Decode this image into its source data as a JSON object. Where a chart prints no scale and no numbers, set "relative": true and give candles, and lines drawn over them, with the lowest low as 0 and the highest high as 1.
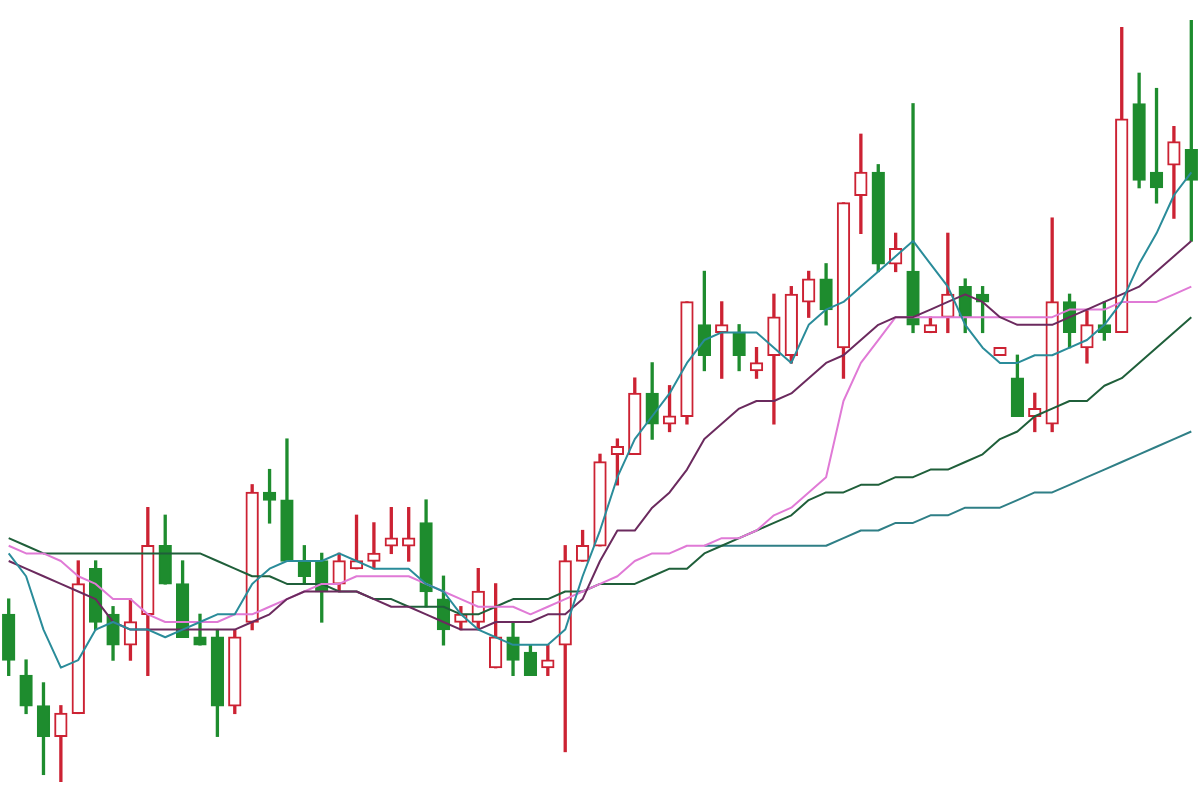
{
  "chart_data": {
    "type": "candlestick",
    "relative": true,
    "legend": false,
    "categories": [
      null,
      null,
      null,
      null,
      null,
      null,
      null,
      null,
      null,
      null,
      null,
      null,
      null,
      null,
      null,
      null,
      null,
      null,
      null,
      null,
      null,
      null,
      null,
      null,
      null,
      null,
      null,
      null,
      null,
      null,
      null,
      null,
      null,
      null,
      null,
      null,
      null,
      null,
      null,
      null,
      null,
      null,
      null,
      null,
      null,
      null,
      null,
      null,
      null,
      null,
      null,
      null,
      null,
      null,
      null,
      null,
      null,
      null,
      null,
      null,
      null,
      null,
      null,
      null,
      null,
      null,
      null,
      null,
      null
    ],
    "ohlc": [
      [
        0.22,
        0.24,
        0.14,
        0.16
      ],
      [
        0.14,
        0.16,
        0.09,
        0.1
      ],
      [
        0.1,
        0.13,
        0.01,
        0.06
      ],
      [
        0.06,
        0.1,
        0,
        0.09
      ],
      [
        0.09,
        0.29,
        0.09,
        0.26
      ],
      [
        0.28,
        0.29,
        0.2,
        0.21
      ],
      [
        0.22,
        0.23,
        0.16,
        0.18
      ],
      [
        0.18,
        0.24,
        0.16,
        0.21
      ],
      [
        0.22,
        0.36,
        0.14,
        0.31
      ],
      [
        0.31,
        0.35,
        0.26,
        0.26
      ],
      [
        0.26,
        0.29,
        0.19,
        0.19
      ],
      [
        0.19,
        0.22,
        0.18,
        0.18
      ],
      [
        0.19,
        0.2,
        0.06,
        0.1
      ],
      [
        0.1,
        0.2,
        0.09,
        0.19
      ],
      [
        0.21,
        0.39,
        0.2,
        0.38
      ],
      [
        0.38,
        0.41,
        0.34,
        0.37
      ],
      [
        0.37,
        0.45,
        0.29,
        0.29
      ],
      [
        0.29,
        0.31,
        0.26,
        0.27
      ],
      [
        0.29,
        0.3,
        0.21,
        0.25
      ],
      [
        0.26,
        0.3,
        0.25,
        0.29
      ],
      [
        0.28,
        0.35,
        0.28,
        0.29
      ],
      [
        0.29,
        0.34,
        0.28,
        0.3
      ],
      [
        0.31,
        0.36,
        0.3,
        0.32
      ],
      [
        0.31,
        0.36,
        0.29,
        0.32
      ],
      [
        0.34,
        0.37,
        0.23,
        0.25
      ],
      [
        0.24,
        0.27,
        0.18,
        0.2
      ],
      [
        0.21,
        0.23,
        0.2,
        0.22
      ],
      [
        0.21,
        0.28,
        0.2,
        0.25
      ],
      [
        0.15,
        0.26,
        0.15,
        0.19
      ],
      [
        0.19,
        0.21,
        0.14,
        0.16
      ],
      [
        0.17,
        0.18,
        0.14,
        0.14
      ],
      [
        0.15,
        0.18,
        0.14,
        0.16
      ],
      [
        0.18,
        0.31,
        0.04,
        0.29
      ],
      [
        0.29,
        0.33,
        0.29,
        0.31
      ],
      [
        0.31,
        0.43,
        0.31,
        0.42
      ],
      [
        0.43,
        0.45,
        0.39,
        0.44
      ],
      [
        0.43,
        0.53,
        0.43,
        0.51
      ],
      [
        0.51,
        0.55,
        0.45,
        0.47
      ],
      [
        0.47,
        0.52,
        0.46,
        0.48
      ],
      [
        0.48,
        0.63,
        0.47,
        0.63
      ],
      [
        0.6,
        0.67,
        0.54,
        0.56
      ],
      [
        0.59,
        0.63,
        0.53,
        0.6
      ],
      [
        0.59,
        0.6,
        0.54,
        0.56
      ],
      [
        0.54,
        0.57,
        0.53,
        0.55
      ],
      [
        0.56,
        0.64,
        0.47,
        0.61
      ],
      [
        0.56,
        0.65,
        0.55,
        0.64
      ],
      [
        0.63,
        0.67,
        0.61,
        0.66
      ],
      [
        0.66,
        0.68,
        0.6,
        0.62
      ],
      [
        0.57,
        0.76,
        0.53,
        0.76
      ],
      [
        0.77,
        0.85,
        0.72,
        0.8
      ],
      [
        0.8,
        0.81,
        0.67,
        0.68
      ],
      [
        0.68,
        0.72,
        0.67,
        0.7
      ],
      [
        0.67,
        0.89,
        0.59,
        0.6
      ],
      [
        0.59,
        0.61,
        0.59,
        0.6
      ],
      [
        0.61,
        0.72,
        0.59,
        0.64
      ],
      [
        0.65,
        0.66,
        0.59,
        0.61
      ],
      [
        0.64,
        0.65,
        0.59,
        0.63
      ],
      [
        0.56,
        0.57,
        0.56,
        0.57
      ],
      [
        0.53,
        0.56,
        0.48,
        0.48
      ],
      [
        0.48,
        0.51,
        0.46,
        0.49
      ],
      [
        0.47,
        0.74,
        0.46,
        0.63
      ],
      [
        0.63,
        0.64,
        0.57,
        0.59
      ],
      [
        0.57,
        0.62,
        0.55,
        0.6
      ],
      [
        0.6,
        0.63,
        0.58,
        0.59
      ],
      [
        0.59,
        0.99,
        0.59,
        0.87
      ],
      [
        0.89,
        0.93,
        0.78,
        0.79
      ],
      [
        0.8,
        0.91,
        0.76,
        0.78
      ],
      [
        0.81,
        0.86,
        0.74,
        0.84
      ],
      [
        0.83,
        1,
        0.71,
        0.79
      ]
    ],
    "colors": [
      "#1e8c2e",
      "#1e8c2e",
      "#1e8c2e",
      "#cc2233",
      "#cc2233",
      "#1e8c2e",
      "#1e8c2e",
      "#cc2233",
      "#cc2233",
      "#1e8c2e",
      "#1e8c2e",
      "#1e8c2e",
      "#1e8c2e",
      "#cc2233",
      "#cc2233",
      "#1e8c2e",
      "#1e8c2e",
      "#1e8c2e",
      "#1e8c2e",
      "#cc2233",
      "#cc2233",
      "#cc2233",
      "#cc2233",
      "#cc2233",
      "#1e8c2e",
      "#1e8c2e",
      "#cc2233",
      "#cc2233",
      "#cc2233",
      "#1e8c2e",
      "#1e8c2e",
      "#cc2233",
      "#cc2233",
      "#cc2233",
      "#cc2233",
      "#cc2233",
      "#cc2233",
      "#1e8c2e",
      "#cc2233",
      "#cc2233",
      "#1e8c2e",
      "#cc2233",
      "#1e8c2e",
      "#cc2233",
      "#cc2233",
      "#cc2233",
      "#cc2233",
      "#1e8c2e",
      "#cc2233",
      "#cc2233",
      "#1e8c2e",
      "#cc2233",
      "#1e8c2e",
      "#cc2233",
      "#cc2233",
      "#1e8c2e",
      "#1e8c2e",
      "#cc2233",
      "#1e8c2e",
      "#cc2233",
      "#cc2233",
      "#1e8c2e",
      "#cc2233",
      "#1e8c2e",
      "#cc2233",
      "#1e8c2e",
      "#1e8c2e",
      "#cc2233",
      "#1e8c2e"
    ],
    "series": [
      {
        "type": "line",
        "color": "#2a8c9a",
        "values": [
          0.3,
          0.27,
          0.2,
          0.15,
          0.16,
          0.2,
          0.21,
          0.2,
          0.2,
          0.19,
          0.2,
          0.21,
          0.22,
          0.22,
          0.26,
          0.28,
          0.29,
          0.29,
          0.29,
          0.3,
          0.29,
          0.28,
          0.28,
          0.28,
          0.26,
          0.25,
          0.22,
          0.2,
          0.19,
          0.18,
          0.18,
          0.18,
          0.2,
          0.27,
          0.33,
          0.4,
          0.45,
          0.48,
          0.51,
          0.55,
          0.58,
          0.59,
          0.59,
          0.59,
          0.57,
          0.55,
          0.6,
          0.62,
          0.63,
          0.65,
          0.67,
          0.69,
          0.71,
          0.68,
          0.65,
          0.6,
          0.57,
          0.55,
          0.55,
          0.56,
          0.56,
          0.57,
          0.58,
          0.6,
          0.63,
          0.68,
          0.72,
          0.77,
          0.8
        ]
      },
      {
        "type": "line",
        "color": "#6b2a5e",
        "values": [
          0.29,
          0.28,
          0.27,
          0.26,
          0.25,
          0.24,
          0.21,
          0.2,
          0.2,
          0.2,
          0.2,
          0.2,
          0.2,
          0.2,
          0.21,
          0.22,
          0.24,
          0.25,
          0.25,
          0.25,
          0.25,
          0.24,
          0.23,
          0.23,
          0.22,
          0.21,
          0.2,
          0.2,
          0.21,
          0.21,
          0.21,
          0.22,
          0.22,
          0.24,
          0.29,
          0.33,
          0.33,
          0.36,
          0.38,
          0.41,
          0.45,
          0.47,
          0.49,
          0.5,
          0.5,
          0.51,
          0.53,
          0.55,
          0.56,
          0.58,
          0.6,
          0.61,
          0.61,
          0.62,
          0.63,
          0.64,
          0.63,
          0.61,
          0.6,
          0.6,
          0.6,
          0.61,
          0.62,
          0.63,
          0.64,
          0.65,
          0.67,
          0.69,
          0.71
        ]
      },
      {
        "type": "line",
        "color": "#e07ad6",
        "values": [
          0.31,
          0.3,
          0.3,
          0.29,
          0.27,
          0.26,
          0.24,
          0.24,
          0.22,
          0.21,
          0.21,
          0.21,
          0.21,
          0.22,
          0.22,
          0.23,
          0.24,
          0.25,
          0.26,
          0.26,
          0.27,
          0.27,
          0.27,
          0.27,
          0.26,
          0.25,
          0.24,
          0.23,
          0.23,
          0.23,
          0.22,
          0.23,
          0.24,
          0.25,
          0.26,
          0.27,
          0.29,
          0.3,
          0.3,
          0.31,
          0.31,
          0.32,
          0.32,
          0.33,
          0.35,
          0.36,
          0.38,
          0.4,
          0.5,
          0.55,
          0.58,
          0.61,
          0.61,
          0.61,
          0.61,
          0.61,
          0.61,
          0.61,
          0.61,
          0.61,
          0.61,
          0.62,
          0.62,
          0.62,
          0.63,
          0.63,
          0.63,
          0.64,
          0.65
        ]
      },
      {
        "type": "line",
        "color": "#1f5f3a",
        "values": [
          0.32,
          0.31,
          0.3,
          0.3,
          0.3,
          0.3,
          0.3,
          0.3,
          0.3,
          0.3,
          0.3,
          0.3,
          0.29,
          0.28,
          0.27,
          0.27,
          0.26,
          0.26,
          0.26,
          0.25,
          0.25,
          0.24,
          0.24,
          0.23,
          0.23,
          0.23,
          0.22,
          0.22,
          0.23,
          0.24,
          0.24,
          0.24,
          0.25,
          0.25,
          0.26,
          0.26,
          0.26,
          0.27,
          0.28,
          0.28,
          0.3,
          0.31,
          0.32,
          0.33,
          0.34,
          0.35,
          0.37,
          0.38,
          0.38,
          0.39,
          0.39,
          0.4,
          0.4,
          0.41,
          0.41,
          0.42,
          0.43,
          0.45,
          0.46,
          0.48,
          0.49,
          0.5,
          0.5,
          0.52,
          0.53,
          0.55,
          0.57,
          0.59,
          0.61
        ]
      },
      {
        "type": "line",
        "color": "#2f7f86",
        "values": [
          null,
          null,
          null,
          null,
          null,
          null,
          null,
          null,
          null,
          null,
          null,
          null,
          null,
          null,
          null,
          null,
          null,
          null,
          null,
          null,
          null,
          null,
          null,
          null,
          null,
          null,
          null,
          null,
          null,
          null,
          null,
          null,
          null,
          null,
          null,
          null,
          null,
          null,
          null,
          null,
          0.31,
          0.31,
          0.31,
          0.31,
          0.31,
          0.31,
          0.31,
          0.31,
          0.32,
          0.33,
          0.33,
          0.34,
          0.34,
          0.35,
          0.35,
          0.36,
          0.36,
          0.36,
          0.37,
          0.38,
          0.38,
          0.39,
          0.4,
          0.41,
          0.42,
          0.43,
          0.44,
          0.45,
          0.46
        ]
      }
    ]
  }
}
